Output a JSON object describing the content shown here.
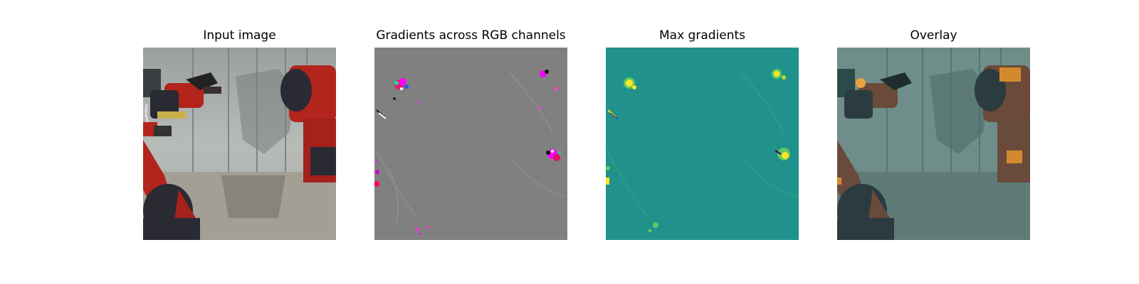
{
  "panels": [
    {
      "title": "Input image"
    },
    {
      "title": "Gradients across RGB channels"
    },
    {
      "title": "Max gradients"
    },
    {
      "title": "Overlay"
    }
  ],
  "colors": {
    "gradient_background": "#808080",
    "max_gradient_background": "#21918c",
    "highlight_yellow": "#fde725",
    "robot_red": "#b3241c",
    "robot_dark": "#2a2a33"
  }
}
